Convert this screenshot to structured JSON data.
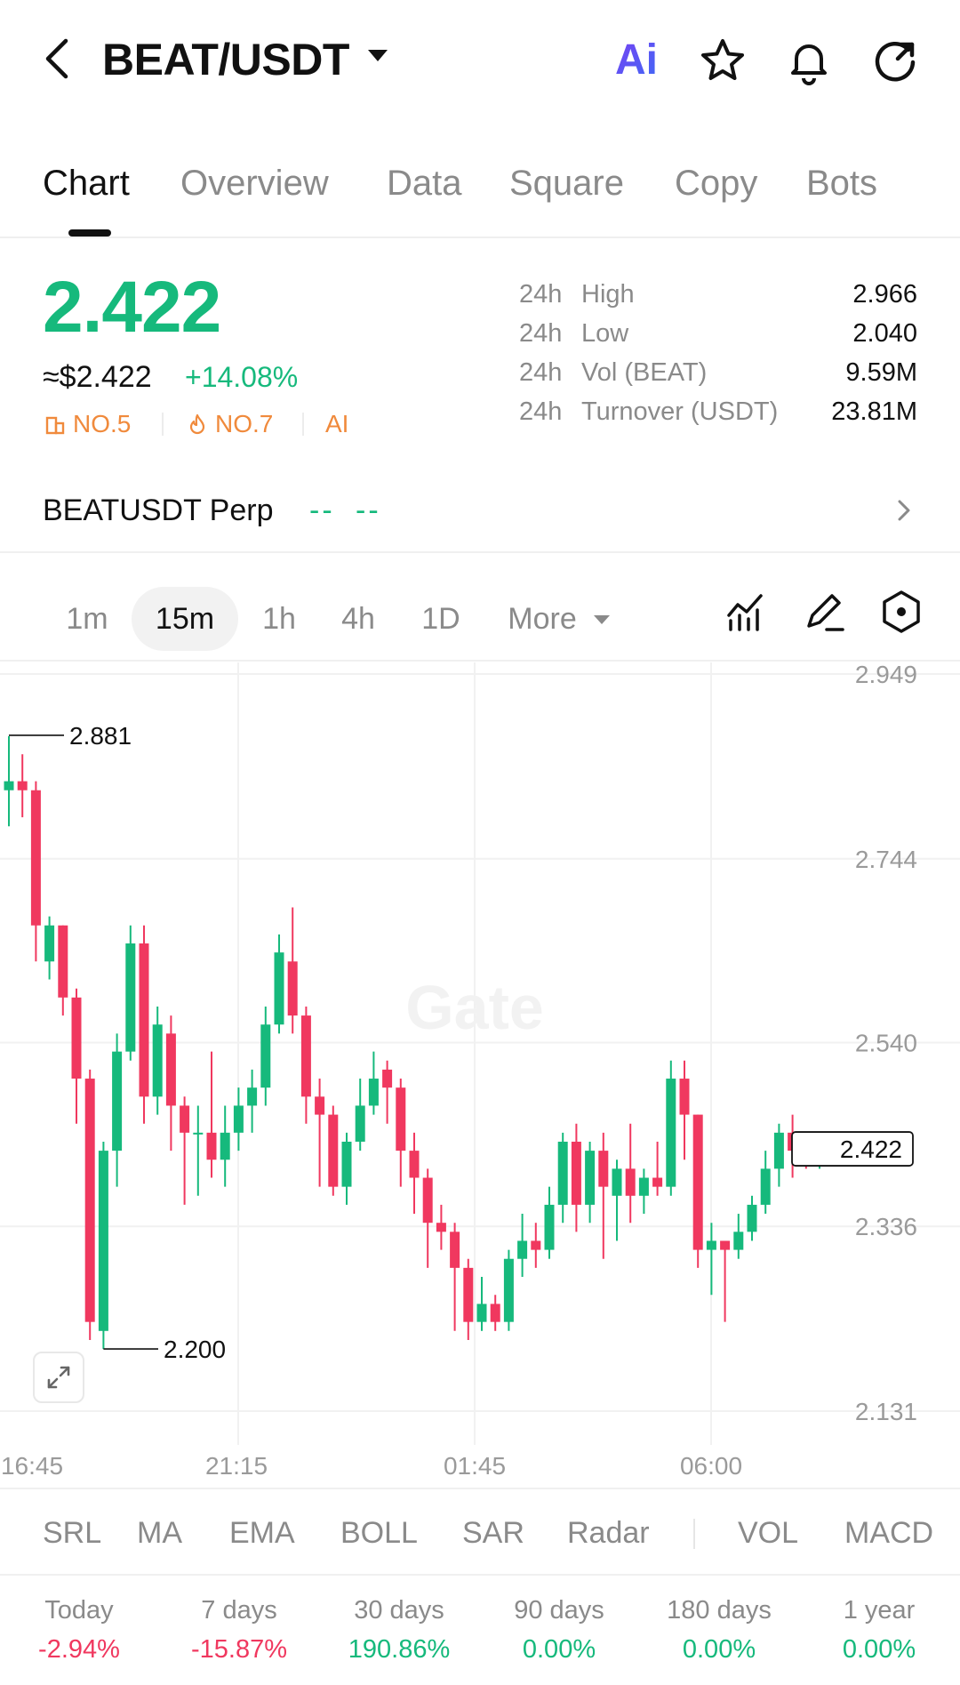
{
  "header": {
    "pair": "BEAT/USDT",
    "ai_label": "Ai"
  },
  "tabs": [
    {
      "label": "Chart",
      "active": true
    },
    {
      "label": "Overview"
    },
    {
      "label": "Data"
    },
    {
      "label": "Square"
    },
    {
      "label": "Copy"
    },
    {
      "label": "Bots"
    }
  ],
  "ticker": {
    "price": "2.422",
    "usd_price": "≈$2.422",
    "change": "+14.08%",
    "rank1": "NO.5",
    "rank2": "NO.7",
    "ai_tag": "AI",
    "stats": [
      {
        "period": "24h",
        "label": "High",
        "value": "2.966"
      },
      {
        "period": "24h",
        "label": "Low",
        "value": "2.040"
      },
      {
        "period": "24h",
        "label": "Vol (BEAT)",
        "value": "9.59M"
      },
      {
        "period": "24h",
        "label": "Turnover (USDT)",
        "value": "23.81M"
      }
    ]
  },
  "perp": {
    "name": "BEATUSDT Perp",
    "price_placeholder": "--",
    "change_placeholder": "--"
  },
  "intervals": [
    "1m",
    "15m",
    "1h",
    "4h",
    "1D",
    "More"
  ],
  "active_interval": "15m",
  "chart_data": {
    "type": "candlestick",
    "y_ticks": [
      "2.949",
      "2.744",
      "2.540",
      "2.336",
      "2.131"
    ],
    "x_ticks": [
      "16:45",
      "21:15",
      "01:45",
      "06:00"
    ],
    "ylim": [
      2.131,
      2.949
    ],
    "high_marker": "2.881",
    "low_marker": "2.200",
    "last_price_label": "2.422",
    "watermark": "Gate",
    "colors": {
      "up": "#16b97c",
      "down": "#f0385f"
    },
    "candles": [
      [
        2.82,
        2.83,
        2.88,
        2.78
      ],
      [
        2.83,
        2.82,
        2.86,
        2.79
      ],
      [
        2.82,
        2.67,
        2.83,
        2.63
      ],
      [
        2.63,
        2.67,
        2.68,
        2.61
      ],
      [
        2.67,
        2.59,
        2.67,
        2.57
      ],
      [
        2.59,
        2.5,
        2.6,
        2.45
      ],
      [
        2.5,
        2.23,
        2.51,
        2.21
      ],
      [
        2.22,
        2.42,
        2.43,
        2.2
      ],
      [
        2.42,
        2.53,
        2.55,
        2.38
      ],
      [
        2.53,
        2.65,
        2.67,
        2.52
      ],
      [
        2.65,
        2.48,
        2.67,
        2.45
      ],
      [
        2.48,
        2.56,
        2.58,
        2.46
      ],
      [
        2.55,
        2.47,
        2.57,
        2.42
      ],
      [
        2.47,
        2.44,
        2.48,
        2.36
      ],
      [
        2.44,
        2.44,
        2.47,
        2.37
      ],
      [
        2.44,
        2.41,
        2.53,
        2.39
      ],
      [
        2.41,
        2.44,
        2.47,
        2.38
      ],
      [
        2.44,
        2.47,
        2.49,
        2.42
      ],
      [
        2.47,
        2.49,
        2.51,
        2.44
      ],
      [
        2.49,
        2.56,
        2.58,
        2.47
      ],
      [
        2.56,
        2.64,
        2.66,
        2.55
      ],
      [
        2.63,
        2.57,
        2.69,
        2.55
      ],
      [
        2.57,
        2.48,
        2.58,
        2.45
      ],
      [
        2.48,
        2.46,
        2.5,
        2.38
      ],
      [
        2.46,
        2.38,
        2.47,
        2.37
      ],
      [
        2.38,
        2.43,
        2.44,
        2.36
      ],
      [
        2.43,
        2.47,
        2.5,
        2.42
      ],
      [
        2.47,
        2.5,
        2.53,
        2.46
      ],
      [
        2.51,
        2.49,
        2.52,
        2.45
      ],
      [
        2.49,
        2.42,
        2.5,
        2.38
      ],
      [
        2.42,
        2.39,
        2.44,
        2.35
      ],
      [
        2.39,
        2.34,
        2.4,
        2.29
      ],
      [
        2.34,
        2.33,
        2.36,
        2.31
      ],
      [
        2.33,
        2.29,
        2.34,
        2.22
      ],
      [
        2.29,
        2.23,
        2.3,
        2.21
      ],
      [
        2.23,
        2.25,
        2.28,
        2.22
      ],
      [
        2.25,
        2.23,
        2.26,
        2.22
      ],
      [
        2.23,
        2.3,
        2.31,
        2.22
      ],
      [
        2.3,
        2.32,
        2.35,
        2.28
      ],
      [
        2.32,
        2.31,
        2.34,
        2.29
      ],
      [
        2.31,
        2.36,
        2.38,
        2.3
      ],
      [
        2.36,
        2.43,
        2.44,
        2.34
      ],
      [
        2.43,
        2.36,
        2.45,
        2.33
      ],
      [
        2.36,
        2.42,
        2.43,
        2.34
      ],
      [
        2.42,
        2.38,
        2.44,
        2.3
      ],
      [
        2.37,
        2.4,
        2.41,
        2.32
      ],
      [
        2.4,
        2.37,
        2.45,
        2.34
      ],
      [
        2.37,
        2.39,
        2.4,
        2.35
      ],
      [
        2.39,
        2.38,
        2.43,
        2.37
      ],
      [
        2.38,
        2.5,
        2.52,
        2.37
      ],
      [
        2.5,
        2.46,
        2.52,
        2.41
      ],
      [
        2.46,
        2.31,
        2.46,
        2.29
      ],
      [
        2.31,
        2.32,
        2.34,
        2.26
      ],
      [
        2.32,
        2.31,
        2.32,
        2.23
      ],
      [
        2.31,
        2.33,
        2.35,
        2.3
      ],
      [
        2.33,
        2.36,
        2.37,
        2.32
      ],
      [
        2.36,
        2.4,
        2.42,
        2.35
      ],
      [
        2.4,
        2.44,
        2.45,
        2.38
      ],
      [
        2.44,
        2.42,
        2.46,
        2.39
      ],
      [
        2.42,
        2.41,
        2.44,
        2.4
      ],
      [
        2.41,
        2.42,
        2.43,
        2.4
      ]
    ]
  },
  "indicators": [
    "SRL",
    "MA",
    "EMA",
    "BOLL",
    "SAR",
    "Radar",
    "VOL",
    "MACD"
  ],
  "performance": [
    {
      "label": "Today",
      "value": "-2.94%",
      "tone": "neg"
    },
    {
      "label": "7 days",
      "value": "-15.87%",
      "tone": "neg"
    },
    {
      "label": "30 days",
      "value": "190.86%",
      "tone": "pos"
    },
    {
      "label": "90 days",
      "value": "0.00%",
      "tone": "pos"
    },
    {
      "label": "180 days",
      "value": "0.00%",
      "tone": "pos"
    },
    {
      "label": "1 year",
      "value": "0.00%",
      "tone": "pos"
    }
  ]
}
